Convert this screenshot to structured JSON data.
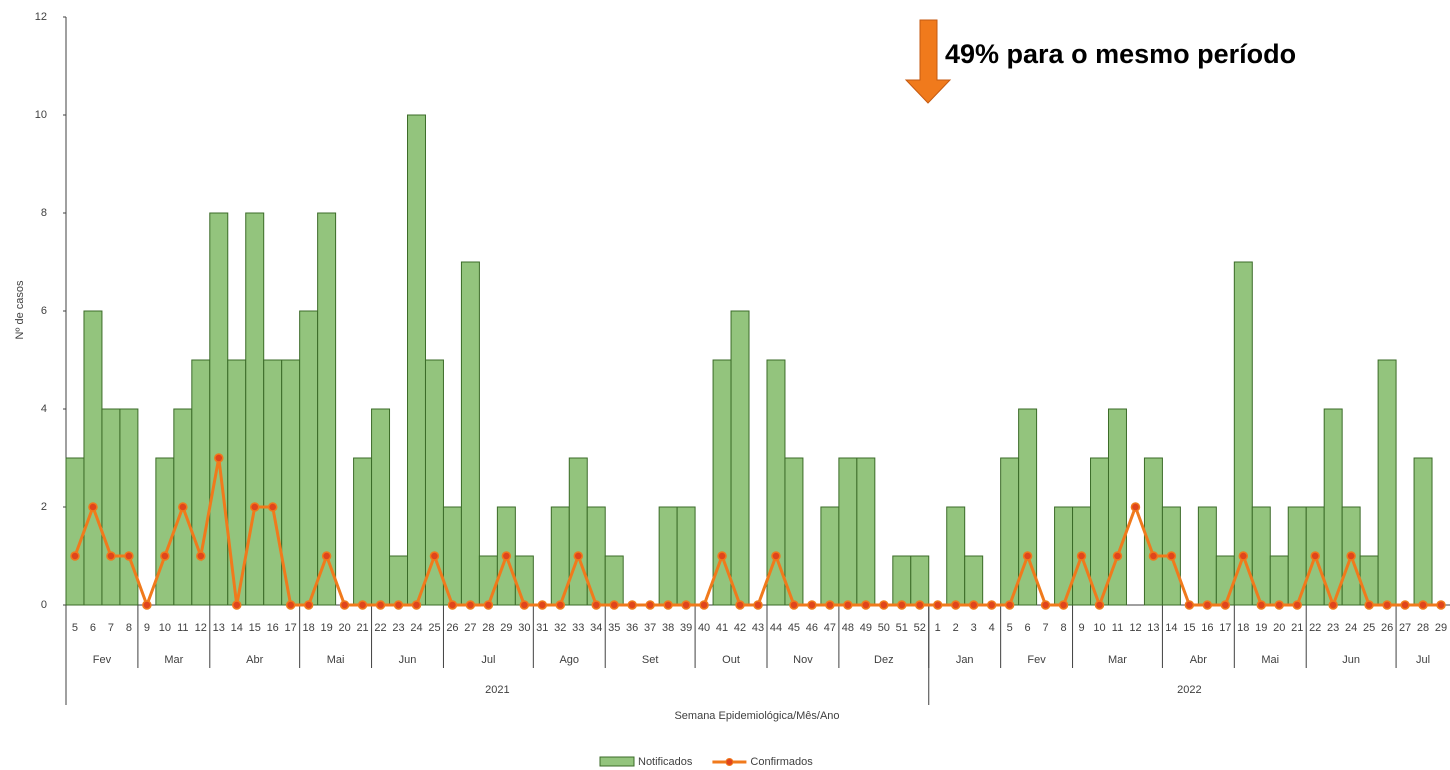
{
  "chart_data": {
    "type": "bar-line",
    "annotation": "49% para o mesmo período",
    "x_label": "Semana Epidemiológica/Mês/Ano",
    "y_label": "Nº de casos",
    "ylim": [
      0,
      12
    ],
    "yticks": [
      0,
      2,
      4,
      6,
      8,
      10,
      12
    ],
    "grid": false,
    "legend": "bottom",
    "categories": [
      "5",
      "6",
      "7",
      "8",
      "9",
      "10",
      "11",
      "12",
      "13",
      "14",
      "15",
      "16",
      "17",
      "18",
      "19",
      "20",
      "21",
      "22",
      "23",
      "24",
      "25",
      "26",
      "27",
      "28",
      "29",
      "30",
      "31",
      "32",
      "33",
      "34",
      "35",
      "36",
      "37",
      "38",
      "39",
      "40",
      "41",
      "42",
      "43",
      "44",
      "45",
      "46",
      "47",
      "48",
      "49",
      "50",
      "51",
      "52",
      "1",
      "2",
      "3",
      "4",
      "5",
      "6",
      "7",
      "8",
      "9",
      "10",
      "11",
      "12",
      "13",
      "14",
      "15",
      "16",
      "17",
      "18",
      "19",
      "20",
      "21",
      "22",
      "23",
      "24",
      "25",
      "26",
      "27",
      "28",
      "29"
    ],
    "months": [
      "Fev",
      null,
      null,
      null,
      "Mar",
      null,
      null,
      null,
      "Abr",
      null,
      null,
      null,
      null,
      "Mai",
      null,
      null,
      null,
      "Jun",
      null,
      null,
      null,
      "Jul",
      null,
      null,
      null,
      null,
      "Ago",
      null,
      null,
      null,
      "Set",
      null,
      null,
      null,
      null,
      "Out",
      null,
      null,
      null,
      "Nov",
      null,
      null,
      null,
      "Dez",
      null,
      null,
      null,
      null,
      "Jan",
      null,
      null,
      null,
      "Fev",
      null,
      null,
      null,
      "Mar",
      null,
      null,
      null,
      null,
      "Abr",
      null,
      null,
      null,
      "Mai",
      null,
      null,
      null,
      "Jun",
      null,
      null,
      null,
      null,
      "Jul",
      null,
      null
    ],
    "years": [
      "2021",
      null,
      null,
      null,
      null,
      null,
      null,
      null,
      null,
      null,
      null,
      null,
      null,
      null,
      null,
      null,
      null,
      null,
      null,
      null,
      null,
      null,
      null,
      null,
      null,
      null,
      null,
      null,
      null,
      null,
      null,
      null,
      null,
      null,
      null,
      null,
      null,
      null,
      null,
      null,
      null,
      null,
      null,
      null,
      null,
      null,
      null,
      null,
      "2022",
      null,
      null,
      null,
      null,
      null,
      null,
      null,
      null,
      null,
      null,
      null,
      null,
      null,
      null,
      null,
      null,
      null,
      null,
      null,
      null,
      null,
      null,
      null,
      null,
      null,
      null,
      null,
      null
    ],
    "series": [
      {
        "name": "Notificados",
        "type": "bar",
        "color": "#93c47d",
        "values": [
          3,
          6,
          4,
          4,
          0,
          3,
          4,
          5,
          8,
          5,
          8,
          5,
          5,
          6,
          8,
          0,
          3,
          4,
          1,
          10,
          5,
          2,
          7,
          1,
          2,
          1,
          0,
          2,
          3,
          2,
          1,
          0,
          0,
          2,
          2,
          0,
          5,
          6,
          0,
          5,
          3,
          0,
          2,
          3,
          3,
          0,
          1,
          1,
          0,
          2,
          1,
          0,
          3,
          4,
          0,
          2,
          2,
          3,
          4,
          0,
          3,
          2,
          0,
          2,
          1,
          7,
          2,
          1,
          2,
          2,
          4,
          2,
          1,
          5,
          0,
          3,
          0
        ]
      },
      {
        "name": "Confirmados",
        "type": "line",
        "color": "#f07a1c",
        "values": [
          1,
          2,
          1,
          1,
          0,
          1,
          2,
          1,
          3,
          0,
          2,
          2,
          0,
          0,
          1,
          0,
          0,
          0,
          0,
          0,
          1,
          0,
          0,
          0,
          1,
          0,
          0,
          0,
          1,
          0,
          0,
          0,
          0,
          0,
          0,
          0,
          1,
          0,
          0,
          1,
          0,
          0,
          0,
          0,
          0,
          0,
          0,
          0,
          0,
          0,
          0,
          0,
          0,
          1,
          0,
          0,
          1,
          0,
          1,
          2,
          1,
          1,
          0,
          0,
          0,
          1,
          0,
          0,
          0,
          1,
          0,
          1,
          0,
          0,
          0,
          0,
          0
        ]
      }
    ]
  }
}
